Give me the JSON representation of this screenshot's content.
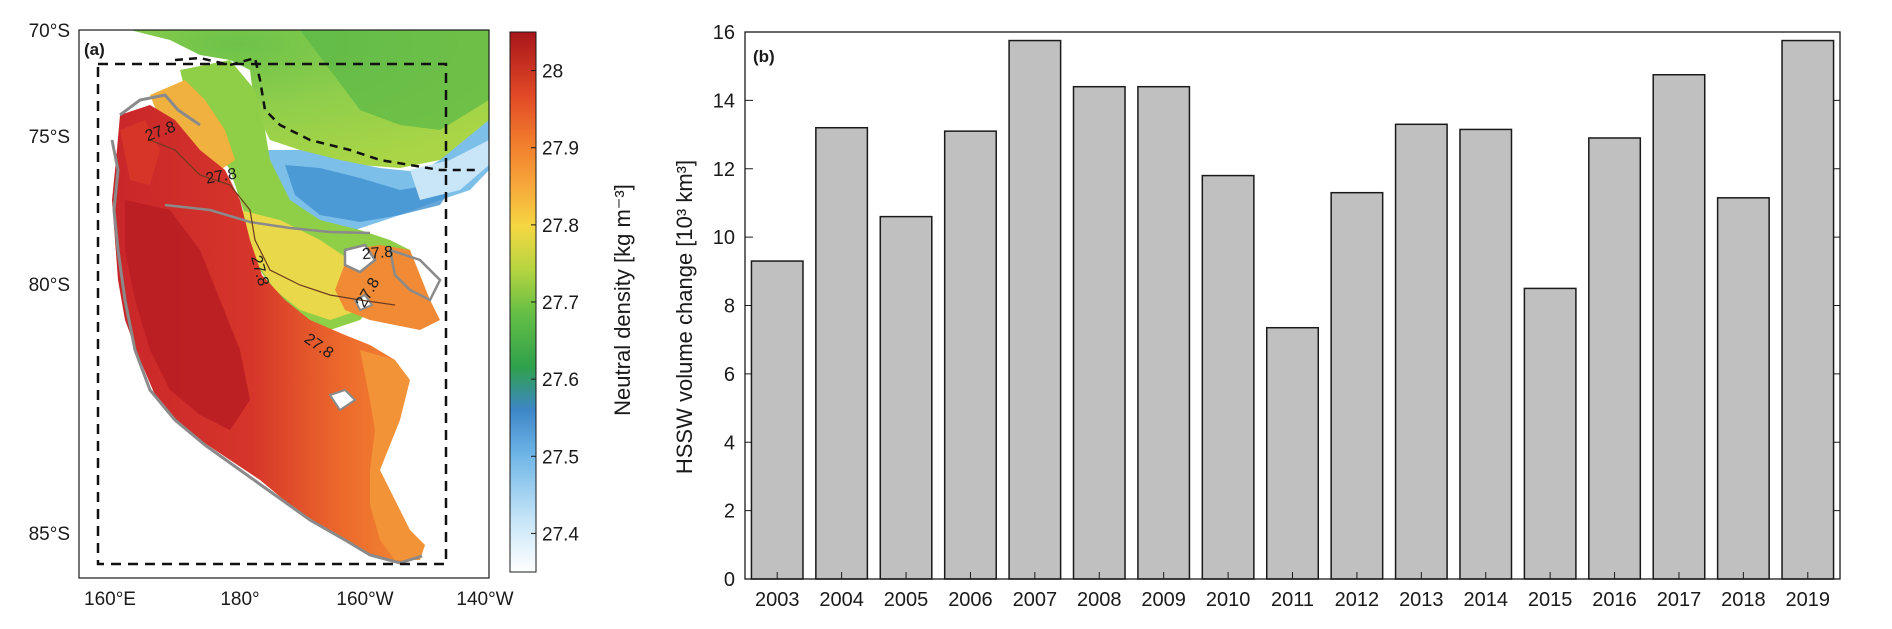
{
  "chart_data": [
    {
      "type": "heatmap",
      "panel_label": "(a)",
      "x_ticks": [
        "160°E",
        "180°",
        "160°W",
        "140°W"
      ],
      "y_ticks": [
        "70°S",
        "75°S",
        "80°S",
        "85°S"
      ],
      "contour_labels": [
        "27.8",
        "27.8",
        "27.8",
        "27.8",
        "27.8",
        "27.8"
      ],
      "colorbar": {
        "label": "Neutral density [kg m⁻³]",
        "ticks": [
          "28",
          "27.9",
          "27.8",
          "27.7",
          "27.6",
          "27.5",
          "27.4"
        ],
        "range": [
          27.35,
          28.05
        ]
      }
    },
    {
      "type": "bar",
      "panel_label": "(b)",
      "ylabel": "HSSW volume change [10³ km³]",
      "ylim": [
        0,
        16
      ],
      "yticks": [
        "0",
        "2",
        "4",
        "6",
        "8",
        "10",
        "12",
        "14",
        "16"
      ],
      "categories": [
        "2003",
        "2004",
        "2005",
        "2006",
        "2007",
        "2008",
        "2009",
        "2010",
        "2011",
        "2012",
        "2013",
        "2014",
        "2015",
        "2016",
        "2017",
        "2018",
        "2019"
      ],
      "values": [
        9.3,
        13.2,
        10.6,
        13.1,
        15.75,
        14.4,
        14.4,
        11.8,
        7.35,
        11.3,
        13.3,
        13.15,
        8.5,
        12.9,
        14.75,
        11.15,
        15.75
      ],
      "bar_color": "#c0c0c0"
    }
  ]
}
